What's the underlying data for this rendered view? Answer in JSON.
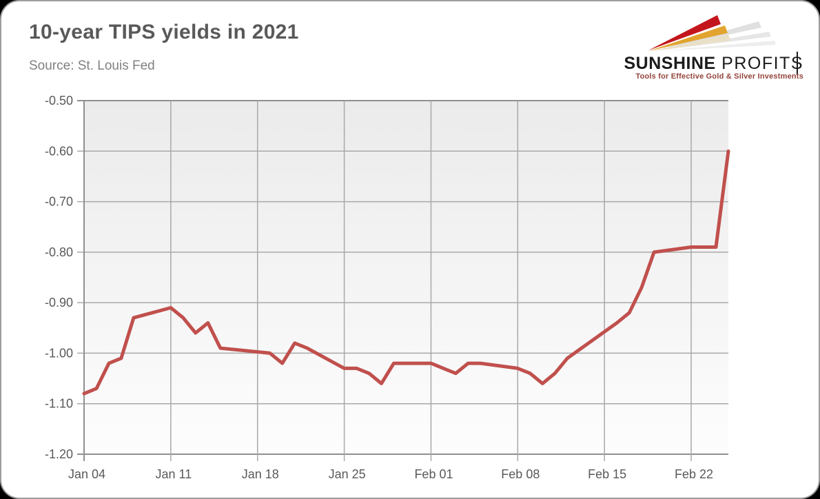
{
  "page": {
    "background": "#000000"
  },
  "card": {
    "background": "#ffffff",
    "border_color": "#9e9e9e"
  },
  "header": {
    "title": "10-year TIPS yields in 2021",
    "source": "Source: St. Louis Fed"
  },
  "logo": {
    "brand_first": "SUNSHINE",
    "brand_second_prefix": "PROFIT",
    "brand_second_last": "S",
    "tagline": "Tools for Effective Gold & Silver Investments",
    "colors": {
      "ray_red": "#c3161c",
      "ray_gold": "#e2a42e",
      "ray_cream": "#eae0c8",
      "ray_shadow": "#d6d6d6",
      "text": "#1b1b1b",
      "tagline": "#94443c"
    }
  },
  "chart_data": {
    "type": "line",
    "title": "10-year TIPS yields in 2021",
    "source_note": "Source: St. Louis Fed",
    "year": 2021,
    "grid": true,
    "legend": "none",
    "x_axis": {
      "scale": "calendar-days",
      "start": "Jan 04",
      "end": "Feb 25",
      "tick_labels": [
        "Jan 04",
        "Jan 11",
        "Jan 18",
        "Jan 25",
        "Feb 01",
        "Feb 08",
        "Feb 15",
        "Feb 22"
      ]
    },
    "y_axis": {
      "min": -1.2,
      "max": -0.5,
      "tick_step": 0.1,
      "tick_labels": [
        "-0.50",
        "-0.60",
        "-0.70",
        "-0.80",
        "-0.90",
        "-1.00",
        "-1.10",
        "-1.20"
      ]
    },
    "line_color": "#c0504d",
    "gridline_color": "#a8a8a8",
    "axis_color": "#8f8f8f",
    "label_color": "#595959",
    "plot_bg_top": "#ebebeb",
    "plot_bg_bottom": "#fdfdfd",
    "series": [
      {
        "name": "10-year TIPS yield (%)",
        "points": [
          [
            "Jan 04",
            -1.08
          ],
          [
            "Jan 05",
            -1.07
          ],
          [
            "Jan 06",
            -1.02
          ],
          [
            "Jan 07",
            -1.01
          ],
          [
            "Jan 08",
            -0.93
          ],
          [
            "Jan 11",
            -0.91
          ],
          [
            "Jan 12",
            -0.93
          ],
          [
            "Jan 13",
            -0.96
          ],
          [
            "Jan 14",
            -0.94
          ],
          [
            "Jan 15",
            -0.99
          ],
          [
            "Jan 19",
            -1.0
          ],
          [
            "Jan 20",
            -1.02
          ],
          [
            "Jan 21",
            -0.98
          ],
          [
            "Jan 22",
            -0.99
          ],
          [
            "Jan 25",
            -1.03
          ],
          [
            "Jan 26",
            -1.03
          ],
          [
            "Jan 27",
            -1.04
          ],
          [
            "Jan 28",
            -1.06
          ],
          [
            "Jan 29",
            -1.02
          ],
          [
            "Feb 01",
            -1.02
          ],
          [
            "Feb 02",
            -1.03
          ],
          [
            "Feb 03",
            -1.04
          ],
          [
            "Feb 04",
            -1.02
          ],
          [
            "Feb 05",
            -1.02
          ],
          [
            "Feb 08",
            -1.03
          ],
          [
            "Feb 09",
            -1.04
          ],
          [
            "Feb 10",
            -1.06
          ],
          [
            "Feb 11",
            -1.04
          ],
          [
            "Feb 12",
            -1.01
          ],
          [
            "Feb 16",
            -0.94
          ],
          [
            "Feb 17",
            -0.92
          ],
          [
            "Feb 18",
            -0.87
          ],
          [
            "Feb 19",
            -0.8
          ],
          [
            "Feb 22",
            -0.79
          ],
          [
            "Feb 23",
            -0.79
          ],
          [
            "Feb 24",
            -0.79
          ],
          [
            "Feb 25",
            -0.6
          ]
        ]
      }
    ]
  }
}
